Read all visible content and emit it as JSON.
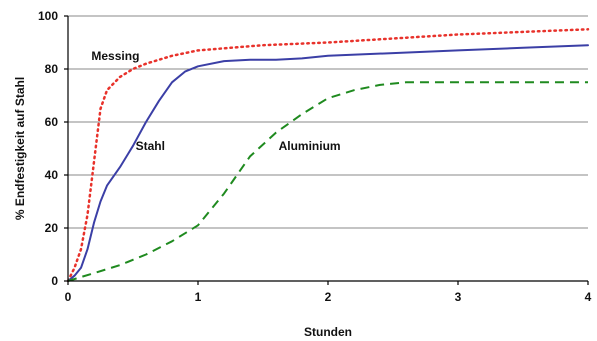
{
  "chart_data": {
    "type": "line",
    "title": "",
    "xlabel": "Stunden",
    "ylabel": "% Endfestigkeit auf Stahl",
    "xlim": [
      0,
      4
    ],
    "ylim": [
      0,
      100
    ],
    "x_ticks": [
      0,
      1,
      2,
      3,
      4
    ],
    "y_ticks": [
      0,
      20,
      40,
      60,
      80,
      100
    ],
    "grid": "horizontal",
    "legend": "none",
    "series": [
      {
        "name": "Messing",
        "color": "#e8322b",
        "style": "dotted",
        "x": [
          0,
          0.05,
          0.1,
          0.15,
          0.2,
          0.25,
          0.3,
          0.4,
          0.5,
          0.6,
          0.8,
          1.0,
          1.5,
          2.0,
          2.5,
          3.0,
          3.5,
          4.0
        ],
        "y": [
          0,
          5,
          12,
          25,
          45,
          65,
          72,
          77,
          80,
          82,
          85,
          87,
          89,
          90,
          91.5,
          93,
          94,
          95
        ]
      },
      {
        "name": "Stahl",
        "color": "#3b3fa6",
        "style": "solid",
        "x": [
          0,
          0.05,
          0.1,
          0.15,
          0.2,
          0.25,
          0.3,
          0.4,
          0.5,
          0.6,
          0.7,
          0.8,
          0.9,
          1.0,
          1.2,
          1.4,
          1.6,
          1.8,
          2.0,
          2.5,
          3.0,
          3.5,
          4.0
        ],
        "y": [
          0,
          2,
          5,
          12,
          22,
          30,
          36,
          43,
          51,
          60,
          68,
          75,
          79,
          81,
          83,
          83.5,
          83.5,
          84,
          85,
          86,
          87,
          88,
          89
        ]
      },
      {
        "name": "Aluminium",
        "color": "#1f8a1f",
        "style": "dashed",
        "x": [
          0,
          0.2,
          0.4,
          0.6,
          0.8,
          0.9,
          1.0,
          1.1,
          1.2,
          1.3,
          1.4,
          1.6,
          1.8,
          2.0,
          2.2,
          2.4,
          2.6,
          2.8,
          3.0,
          3.5,
          4.0
        ],
        "y": [
          0,
          3,
          6,
          10,
          15,
          18,
          21,
          27,
          33,
          40,
          47,
          56,
          63,
          69,
          72,
          74,
          75,
          75,
          75,
          75,
          75
        ]
      }
    ],
    "annotations": [
      {
        "text": "Messing",
        "x": 0.18,
        "y": 85
      },
      {
        "text": "Stahl",
        "x": 0.52,
        "y": 51
      },
      {
        "text": "Aluminium",
        "x": 1.62,
        "y": 51
      }
    ]
  }
}
